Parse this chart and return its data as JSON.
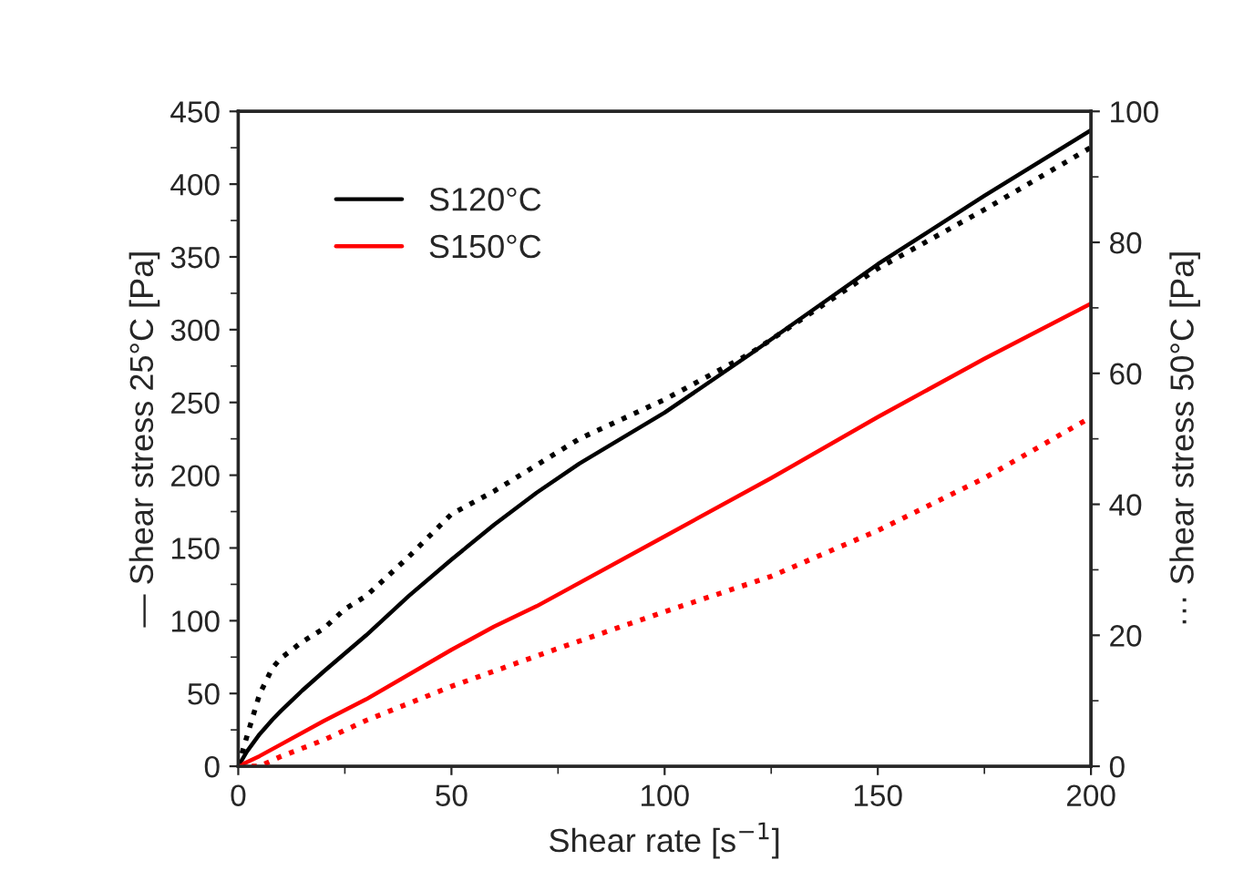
{
  "chart_data": {
    "type": "line",
    "xlabel": "Shear rate [s$^{−1}$]",
    "ylabel": "— Shear stress 25°C [Pa]",
    "y2label": "··· Shear stress 50°C [Pa]",
    "xlim": [
      0,
      200
    ],
    "xticks": [
      0,
      50,
      100,
      150,
      200
    ],
    "ylim": [
      0,
      450
    ],
    "yticks": [
      0,
      50,
      100,
      150,
      200,
      250,
      300,
      350,
      400,
      450
    ],
    "y2lim": [
      0,
      100
    ],
    "y2ticks": [
      0,
      20,
      40,
      60,
      80,
      100
    ],
    "legend": "top left",
    "grid": false,
    "marker": "none",
    "series": [
      {
        "name": "S120°C",
        "color": "#000000",
        "line_style": "solid",
        "x": [
          0,
          2,
          5,
          8,
          10,
          15,
          20,
          30,
          40,
          50,
          60,
          70,
          80,
          100,
          120,
          150,
          175,
          200
        ],
        "values": [
          0,
          10,
          22,
          32,
          38,
          52,
          65,
          90,
          117,
          142,
          166,
          188,
          208,
          243,
          283,
          345,
          392,
          437
        ]
      },
      {
        "name": "S150°C",
        "color": "#ff0000",
        "line_style": "solid",
        "x": [
          0,
          5,
          10,
          20,
          30,
          50,
          60,
          70,
          100,
          125,
          150,
          175,
          200
        ],
        "values": [
          0,
          7,
          15,
          31,
          46,
          80,
          96,
          110,
          158,
          198,
          240,
          280,
          318
        ]
      },
      {
        "color": "#000000",
        "line_style": "dotted",
        "axis": "y2",
        "x": [
          0,
          2,
          5,
          8,
          10,
          15,
          20,
          25,
          30,
          40,
          50,
          60,
          80,
          100,
          120,
          150,
          175,
          200
        ],
        "values": [
          0,
          4.5,
          11,
          15,
          16.5,
          19,
          21,
          24,
          26,
          32,
          38.5,
          42,
          50,
          56,
          63,
          76,
          85,
          94.5
        ]
      },
      {
        "color": "#ff0000",
        "line_style": "dotted",
        "axis": "y2",
        "x": [
          0,
          5,
          10,
          20,
          30,
          50,
          75,
          100,
          125,
          150,
          175,
          200
        ],
        "values": [
          0,
          0,
          1.5,
          4,
          7,
          12.2,
          18,
          23.6,
          29,
          36,
          44,
          53.3
        ]
      }
    ]
  }
}
